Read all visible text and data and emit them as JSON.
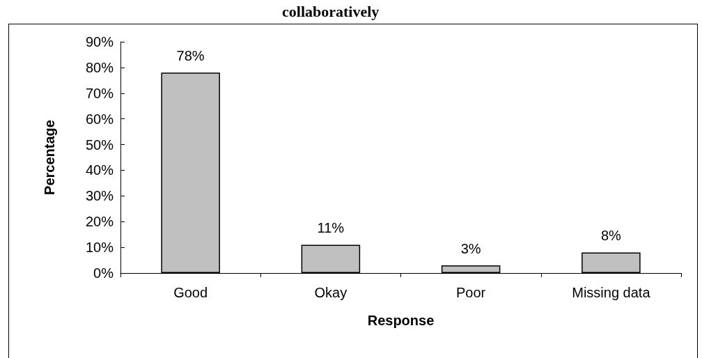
{
  "chart_data": {
    "type": "bar",
    "title": "collaboratively",
    "xlabel": "Response",
    "ylabel": "Percentage",
    "categories": [
      "Good",
      "Okay",
      "Poor",
      "Missing data"
    ],
    "values": [
      78,
      11,
      3,
      8
    ],
    "value_labels": [
      "78%",
      "11%",
      "3%",
      "8%"
    ],
    "color": "#c0c0c0",
    "ylim": [
      0,
      90
    ],
    "yticks": [
      {
        "value": 0,
        "label": "0%"
      },
      {
        "value": 10,
        "label": "10%"
      },
      {
        "value": 20,
        "label": "20%"
      },
      {
        "value": 30,
        "label": "30%"
      },
      {
        "value": 40,
        "label": "40%"
      },
      {
        "value": 50,
        "label": "50%"
      },
      {
        "value": 60,
        "label": "60%"
      },
      {
        "value": 70,
        "label": "70%"
      },
      {
        "value": 80,
        "label": "80%"
      },
      {
        "value": 90,
        "label": "90%"
      }
    ],
    "grid": false
  }
}
